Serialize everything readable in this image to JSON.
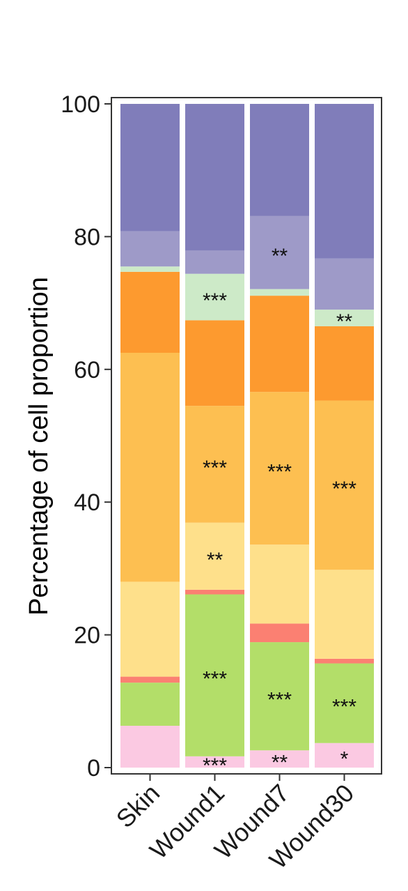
{
  "chart_data": {
    "type": "bar",
    "stacked": true,
    "ylabel": "Percentage of cell proportion",
    "xlabel": "",
    "ylim": [
      0,
      100
    ],
    "yticks": [
      "0",
      "20",
      "40",
      "60",
      "80",
      "100"
    ],
    "categories": [
      "Skin",
      "Wound1",
      "Wound7",
      "Wound30"
    ],
    "grid": false,
    "legend": "none",
    "series": [
      {
        "color": "#fbc9e2",
        "values": [
          6.3,
          1.7,
          2.6,
          3.7
        ],
        "sig": [
          "",
          "***",
          "**",
          "*"
        ]
      },
      {
        "color": "#b3de69",
        "values": [
          6.5,
          24.4,
          16.3,
          12.0
        ],
        "sig": [
          "",
          "***",
          "***",
          "***"
        ]
      },
      {
        "color": "#fb8072",
        "values": [
          0.9,
          0.7,
          2.8,
          0.7
        ],
        "sig": [
          "",
          "",
          "",
          ""
        ]
      },
      {
        "color": "#fee08b",
        "values": [
          14.3,
          10.1,
          11.9,
          13.4
        ],
        "sig": [
          "",
          "**",
          "",
          ""
        ]
      },
      {
        "color": "#fdbf51",
        "values": [
          34.5,
          17.6,
          23.0,
          25.5
        ],
        "sig": [
          "",
          "***",
          "***",
          "***"
        ]
      },
      {
        "color": "#fd9a2f",
        "values": [
          12.2,
          12.9,
          14.5,
          11.2
        ],
        "sig": [
          "",
          "",
          "",
          ""
        ]
      },
      {
        "color": "#cdeac8",
        "values": [
          0.8,
          7.0,
          1.0,
          2.5
        ],
        "sig": [
          "",
          "***",
          "",
          "**"
        ]
      },
      {
        "color": "#9e9ac8",
        "values": [
          5.3,
          3.5,
          11.0,
          7.7
        ],
        "sig": [
          "",
          "",
          "**",
          ""
        ]
      },
      {
        "color": "#807dba",
        "values": [
          19.2,
          22.1,
          16.9,
          23.3
        ],
        "sig": [
          "",
          "",
          "",
          ""
        ]
      }
    ]
  }
}
